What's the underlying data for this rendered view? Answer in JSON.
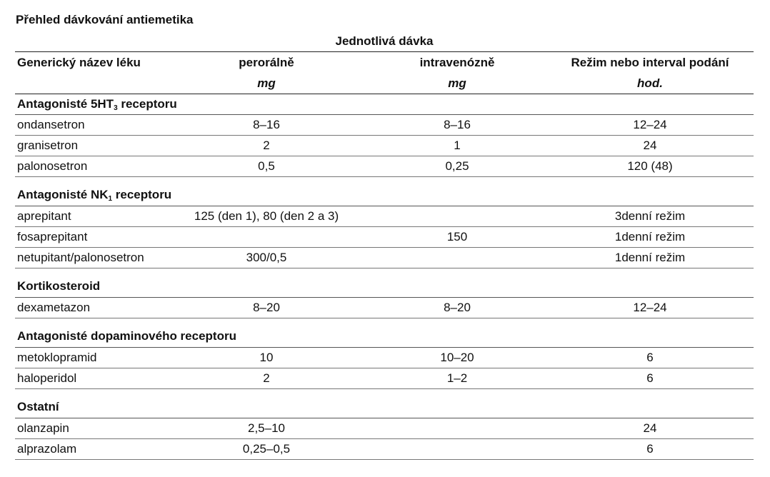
{
  "title": "Přehled dávkování antiemetika",
  "header": {
    "group_label": "Jednotlivá dávka",
    "columns": [
      "Generický název léku",
      "perorálně",
      "intravenózně",
      "Režim nebo interval podání"
    ],
    "units": [
      "",
      "mg",
      "mg",
      "hod."
    ]
  },
  "sections": [
    {
      "title": "Antagonisté 5HT",
      "subscript": "3",
      "title_suffix": " receptoru",
      "rows": [
        [
          "ondansetron",
          "8–16",
          "8–16",
          "12–24"
        ],
        [
          "granisetron",
          "2",
          "1",
          "24"
        ],
        [
          "palonosetron",
          "0,5",
          "0,25",
          "120 (48)"
        ]
      ]
    },
    {
      "title": "Antagonisté NK",
      "subscript": "1",
      "title_suffix": " receptoru",
      "rows": [
        [
          "aprepitant",
          "125 (den 1), 80 (den 2 a 3)",
          "",
          "3denní režim"
        ],
        [
          "fosaprepitant",
          "",
          "150",
          "1denní režim"
        ],
        [
          "netupitant/palonosetron",
          "300/0,5",
          "",
          "1denní režim"
        ]
      ]
    },
    {
      "title": "Kortikosteroid",
      "subscript": "",
      "title_suffix": "",
      "rows": [
        [
          "dexametazon",
          "8–20",
          "8–20",
          "12–24"
        ]
      ]
    },
    {
      "title": "Antagonisté dopaminového receptoru",
      "subscript": "",
      "title_suffix": "",
      "rows": [
        [
          "metoklopramid",
          "10",
          "10–20",
          "6"
        ],
        [
          "haloperidol",
          "2",
          "1–2",
          "6"
        ]
      ]
    },
    {
      "title": "Ostatní",
      "subscript": "",
      "title_suffix": "",
      "rows": [
        [
          "olanzapin",
          "2,5–10",
          "",
          "24"
        ],
        [
          "alprazolam",
          "0,25–0,5",
          "",
          "6"
        ]
      ]
    }
  ]
}
